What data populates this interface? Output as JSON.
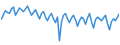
{
  "chart_data": {
    "type": "line",
    "color": "#3b8fd9",
    "tick_labels": false,
    "grid": false,
    "x": [
      0,
      2,
      4,
      6,
      8,
      10,
      12,
      14,
      16,
      18,
      20,
      22,
      24,
      26,
      28,
      30,
      32,
      34,
      36,
      38,
      40,
      42,
      44,
      46,
      48,
      50,
      52,
      54,
      56,
      58,
      60,
      62,
      64,
      66,
      68,
      70,
      72,
      74,
      76,
      78,
      80,
      82,
      84,
      86,
      88,
      90,
      92,
      94,
      96,
      98,
      100,
      102,
      104,
      106,
      108,
      110,
      112,
      114,
      116,
      118
    ],
    "values": [
      27,
      32,
      36,
      34,
      33,
      38,
      40,
      31,
      35,
      39,
      37,
      35,
      38,
      41,
      36,
      31,
      34,
      37,
      32,
      27,
      33,
      35,
      29,
      25,
      30,
      33,
      27,
      23,
      29,
      3,
      24,
      31,
      33,
      27,
      23,
      28,
      31,
      26,
      19,
      25,
      29,
      27,
      21,
      28,
      33,
      24,
      17,
      26,
      29,
      27,
      25,
      28,
      31,
      22,
      15,
      24,
      27,
      25,
      29,
      33
    ],
    "xlim": [
      0,
      118
    ],
    "ylim": [
      0,
      45
    ]
  }
}
